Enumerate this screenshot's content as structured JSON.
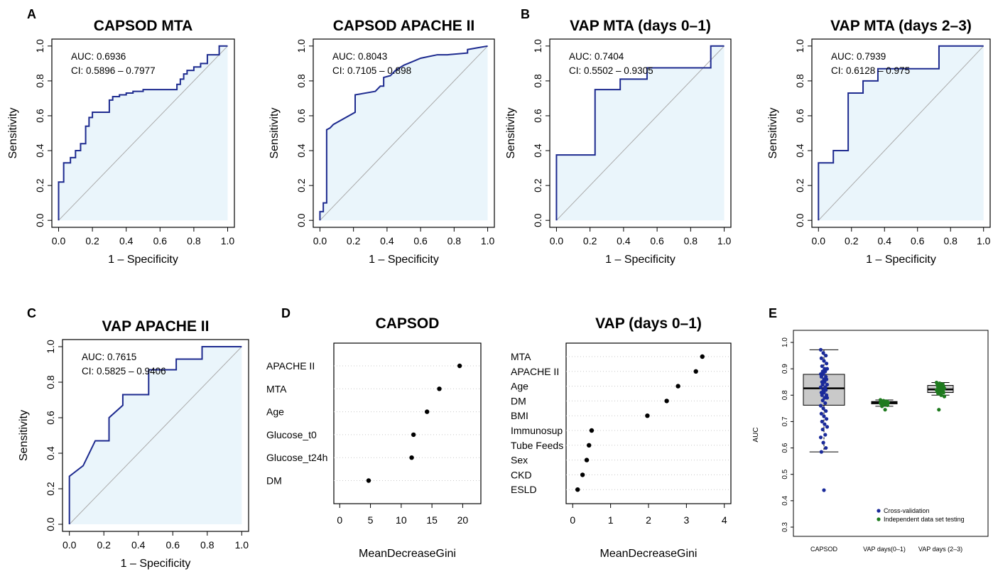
{
  "panel_labels": [
    "A",
    "B",
    "C",
    "D",
    "E"
  ],
  "chart_data": [
    {
      "type": "line",
      "title": "CAPSOD MTA",
      "xlabel": "1 – Specificity",
      "ylabel": "Sensitivity",
      "xlim": [
        0,
        1
      ],
      "ylim": [
        0,
        1
      ],
      "xticks": [
        "0.0",
        "0.2",
        "0.4",
        "0.6",
        "0.8",
        "1.0"
      ],
      "yticks": [
        "0.0",
        "0.2",
        "0.4",
        "0.6",
        "0.8",
        "1.0"
      ],
      "annotations": [
        "AUC: 0.6936",
        "CI: 0.5896 – 0.7977"
      ],
      "x": [
        0,
        0,
        0.03,
        0.03,
        0.07,
        0.07,
        0.1,
        0.1,
        0.13,
        0.13,
        0.16,
        0.16,
        0.18,
        0.18,
        0.2,
        0.2,
        0.22,
        0.22,
        0.24,
        0.24,
        0.3,
        0.3,
        0.32,
        0.32,
        0.36,
        0.36,
        0.4,
        0.4,
        0.44,
        0.44,
        0.5,
        0.5,
        0.7,
        0.7,
        0.72,
        0.72,
        0.74,
        0.74,
        0.76,
        0.76,
        0.8,
        0.8,
        0.84,
        0.84,
        0.88,
        0.88,
        0.95,
        0.95,
        1.0,
        1.0
      ],
      "y": [
        0,
        0.22,
        0.22,
        0.33,
        0.33,
        0.36,
        0.36,
        0.4,
        0.4,
        0.44,
        0.44,
        0.54,
        0.54,
        0.59,
        0.59,
        0.62,
        0.62,
        0.62,
        0.62,
        0.62,
        0.62,
        0.69,
        0.69,
        0.71,
        0.71,
        0.72,
        0.72,
        0.73,
        0.73,
        0.74,
        0.74,
        0.75,
        0.75,
        0.78,
        0.78,
        0.81,
        0.81,
        0.84,
        0.84,
        0.86,
        0.86,
        0.88,
        0.88,
        0.9,
        0.9,
        0.95,
        0.95,
        1.0,
        1.0,
        1.0
      ]
    },
    {
      "type": "line",
      "title": "CAPSOD APACHE II",
      "xlabel": "1 – Specificity",
      "ylabel": "Sensitivity",
      "xlim": [
        0,
        1
      ],
      "ylim": [
        0,
        1
      ],
      "xticks": [
        "0.0",
        "0.2",
        "0.4",
        "0.6",
        "0.8",
        "1.0"
      ],
      "yticks": [
        "0.0",
        "0.2",
        "0.4",
        "0.6",
        "0.8",
        "1.0"
      ],
      "annotations": [
        "AUC: 0.8043",
        "CI: 0.7105 – 0.898"
      ],
      "x": [
        0,
        0,
        0.02,
        0.02,
        0.04,
        0.04,
        0.06,
        0.08,
        0.21,
        0.21,
        0.33,
        0.36,
        0.38,
        0.38,
        0.42,
        0.45,
        0.5,
        0.55,
        0.6,
        0.65,
        0.7,
        0.76,
        0.88,
        0.88,
        0.94,
        1.0
      ],
      "y": [
        0,
        0.05,
        0.05,
        0.1,
        0.1,
        0.52,
        0.53,
        0.55,
        0.62,
        0.72,
        0.74,
        0.77,
        0.77,
        0.82,
        0.83,
        0.86,
        0.89,
        0.91,
        0.93,
        0.94,
        0.95,
        0.95,
        0.96,
        0.98,
        0.99,
        1.0
      ]
    },
    {
      "type": "line",
      "title": "VAP MTA (days 0–1)",
      "xlabel": "1 – Specificity",
      "ylabel": "Sensitivity",
      "xlim": [
        0,
        1
      ],
      "ylim": [
        0,
        1
      ],
      "xticks": [
        "0.0",
        "0.2",
        "0.4",
        "0.6",
        "0.8",
        "1.0"
      ],
      "yticks": [
        "0.0",
        "0.2",
        "0.4",
        "0.6",
        "0.8",
        "1.0"
      ],
      "annotations": [
        "AUC: 0.7404",
        "CI: 0.5502 – 0.9305"
      ],
      "x": [
        0,
        0,
        0.23,
        0.23,
        0.38,
        0.38,
        0.54,
        0.54,
        0.92,
        0.92,
        1.0
      ],
      "y": [
        0,
        0.375,
        0.375,
        0.75,
        0.75,
        0.81,
        0.81,
        0.875,
        0.875,
        1.0,
        1.0
      ]
    },
    {
      "type": "line",
      "title": "VAP MTA (days 2–3)",
      "xlabel": "1 – Specificity",
      "ylabel": "Sensitivity",
      "xlim": [
        0,
        1
      ],
      "ylim": [
        0,
        1
      ],
      "xticks": [
        "0.0",
        "0.2",
        "0.4",
        "0.6",
        "0.8",
        "1.0"
      ],
      "yticks": [
        "0.0",
        "0.2",
        "0.4",
        "0.6",
        "0.8",
        "1.0"
      ],
      "annotations": [
        "AUC: 0.7939",
        "CI: 0.6128 – 0.975"
      ],
      "x": [
        0,
        0,
        0.09,
        0.09,
        0.18,
        0.18,
        0.27,
        0.27,
        0.36,
        0.36,
        0.73,
        0.73,
        1.0
      ],
      "y": [
        0,
        0.33,
        0.33,
        0.4,
        0.4,
        0.73,
        0.73,
        0.8,
        0.8,
        0.87,
        0.87,
        1.0,
        1.0
      ]
    },
    {
      "type": "line",
      "title": "VAP APACHE II",
      "xlabel": "1 – Specificity",
      "ylabel": "Sensitivity",
      "xlim": [
        0,
        1
      ],
      "ylim": [
        0,
        1
      ],
      "xticks": [
        "0.0",
        "0.2",
        "0.4",
        "0.6",
        "0.8",
        "1.0"
      ],
      "yticks": [
        "0.0",
        "0.2",
        "0.4",
        "0.6",
        "0.8",
        "1.0"
      ],
      "annotations": [
        "AUC: 0.7615",
        "CI: 0.5825 – 0.9406"
      ],
      "x": [
        0,
        0,
        0.08,
        0.15,
        0.23,
        0.23,
        0.31,
        0.31,
        0.46,
        0.46,
        0.54,
        0.54,
        0.62,
        0.62,
        0.77,
        0.77,
        1.0
      ],
      "y": [
        0,
        0.27,
        0.33,
        0.47,
        0.47,
        0.6,
        0.67,
        0.73,
        0.73,
        0.87,
        0.87,
        0.87,
        0.87,
        0.93,
        0.93,
        1.0,
        1.0
      ]
    },
    {
      "type": "scatter",
      "title": "CAPSOD",
      "xlabel": "MeanDecreaseGini",
      "xlim": [
        0,
        22
      ],
      "xticks": [
        "0",
        "5",
        "10",
        "15",
        "20"
      ],
      "categories": [
        "APACHE II",
        "MTA",
        "Age",
        "Glucose_t0",
        "Glucose_t24h",
        "DM"
      ],
      "values": [
        19.5,
        16.2,
        14.2,
        12.0,
        11.7,
        4.7
      ]
    },
    {
      "type": "scatter",
      "title": "VAP (days 0–1)",
      "xlabel": "MeanDecreaseGini",
      "xlim": [
        0,
        4
      ],
      "xticks": [
        "0",
        "1",
        "2",
        "3",
        "4"
      ],
      "categories": [
        "MTA",
        "APACHE II",
        "Age",
        "DM",
        "BMI",
        "Immunosup",
        "Tube Feeds",
        "Sex",
        "CKD",
        "ESLD"
      ],
      "values": [
        3.42,
        3.25,
        2.78,
        2.48,
        1.97,
        0.5,
        0.43,
        0.37,
        0.26,
        0.13
      ]
    },
    {
      "type": "box",
      "title": "",
      "ylabel": "AUC",
      "ylim": [
        0.3,
        1.0
      ],
      "yticks": [
        "0.3",
        "0.4",
        "0.5",
        "0.6",
        "0.7",
        "0.8",
        "0.9",
        "1.0"
      ],
      "categories": [
        "CAPSOD",
        "VAP days(0–1)",
        "VAP days (2–3)"
      ],
      "series": [
        {
          "name": "Cross-validation",
          "color": "#1a2a9a"
        },
        {
          "name": "Independent data set testing",
          "color": "#1e7a1e"
        }
      ],
      "boxes": [
        {
          "category": "CAPSOD",
          "min": 0.585,
          "q1": 0.762,
          "median": 0.826,
          "q3": 0.879,
          "max": 0.972,
          "outliers": [
            0.44
          ]
        },
        {
          "category": "VAP days(0–1)",
          "min": 0.758,
          "q1": 0.767,
          "median": 0.772,
          "q3": 0.776,
          "max": 0.782,
          "outliers": [
            0.745
          ]
        },
        {
          "category": "VAP days (2–3)",
          "min": 0.8,
          "q1": 0.81,
          "median": 0.822,
          "q3": 0.837,
          "max": 0.848,
          "outliers": [
            0.745,
            0.795
          ]
        }
      ],
      "points": {
        "CAPSOD": [
          0.972,
          0.96,
          0.95,
          0.94,
          0.93,
          0.92,
          0.91,
          0.9,
          0.9,
          0.89,
          0.89,
          0.88,
          0.88,
          0.87,
          0.87,
          0.86,
          0.86,
          0.85,
          0.85,
          0.84,
          0.84,
          0.83,
          0.83,
          0.82,
          0.82,
          0.81,
          0.81,
          0.8,
          0.8,
          0.79,
          0.79,
          0.78,
          0.77,
          0.76,
          0.75,
          0.74,
          0.73,
          0.72,
          0.71,
          0.7,
          0.69,
          0.68,
          0.67,
          0.65,
          0.64,
          0.62,
          0.6,
          0.585,
          0.44
        ],
        "VAP days(0–1)": [
          0.782,
          0.779,
          0.777,
          0.776,
          0.775,
          0.774,
          0.773,
          0.772,
          0.772,
          0.771,
          0.77,
          0.77,
          0.769,
          0.768,
          0.767,
          0.765,
          0.762,
          0.758,
          0.745
        ],
        "VAP days (2–3)": [
          0.848,
          0.845,
          0.842,
          0.838,
          0.835,
          0.832,
          0.83,
          0.828,
          0.826,
          0.824,
          0.822,
          0.82,
          0.818,
          0.816,
          0.814,
          0.812,
          0.81,
          0.806,
          0.8,
          0.795,
          0.745
        ]
      }
    }
  ]
}
